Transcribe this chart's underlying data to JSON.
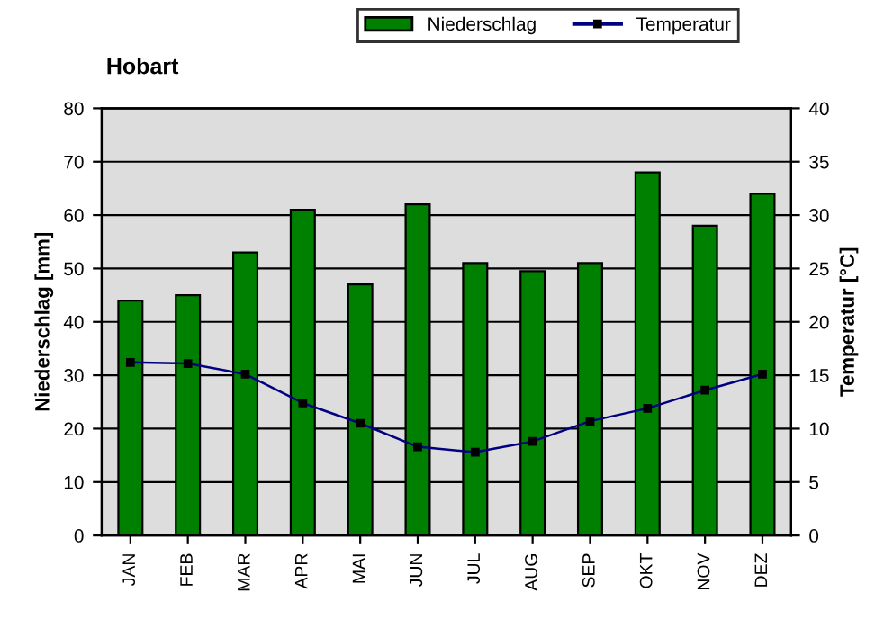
{
  "chart_data": {
    "type": "bar",
    "title": "Hobart",
    "ylabel": "Niederschlag [mm]",
    "y2label": "Temperatur [°C]",
    "categories": [
      "JAN",
      "FEB",
      "MAR",
      "APR",
      "MAI",
      "JUN",
      "JUL",
      "AUG",
      "SEP",
      "OKT",
      "NOV",
      "DEZ"
    ],
    "series": [
      {
        "name": "Niederschlag",
        "color": "#008000",
        "values": [
          44,
          45,
          53,
          61,
          47,
          62,
          51,
          49.5,
          51,
          68,
          58,
          64
        ]
      },
      {
        "name": "Temperatur",
        "type": "line",
        "axis": "y2",
        "color": "#000080",
        "marker": "square",
        "values": [
          16.2,
          16.1,
          15.1,
          12.4,
          10.5,
          8.3,
          7.8,
          8.8,
          10.7,
          11.9,
          13.6,
          15.1
        ]
      }
    ],
    "ylim": [
      0,
      80
    ],
    "yticks": [
      0,
      10,
      20,
      30,
      40,
      50,
      60,
      70,
      80
    ],
    "y2lim": [
      0,
      40
    ],
    "y2ticks": [
      0,
      5,
      10,
      15,
      20,
      25,
      30,
      35,
      40
    ],
    "grid": "y",
    "legend": "top"
  }
}
